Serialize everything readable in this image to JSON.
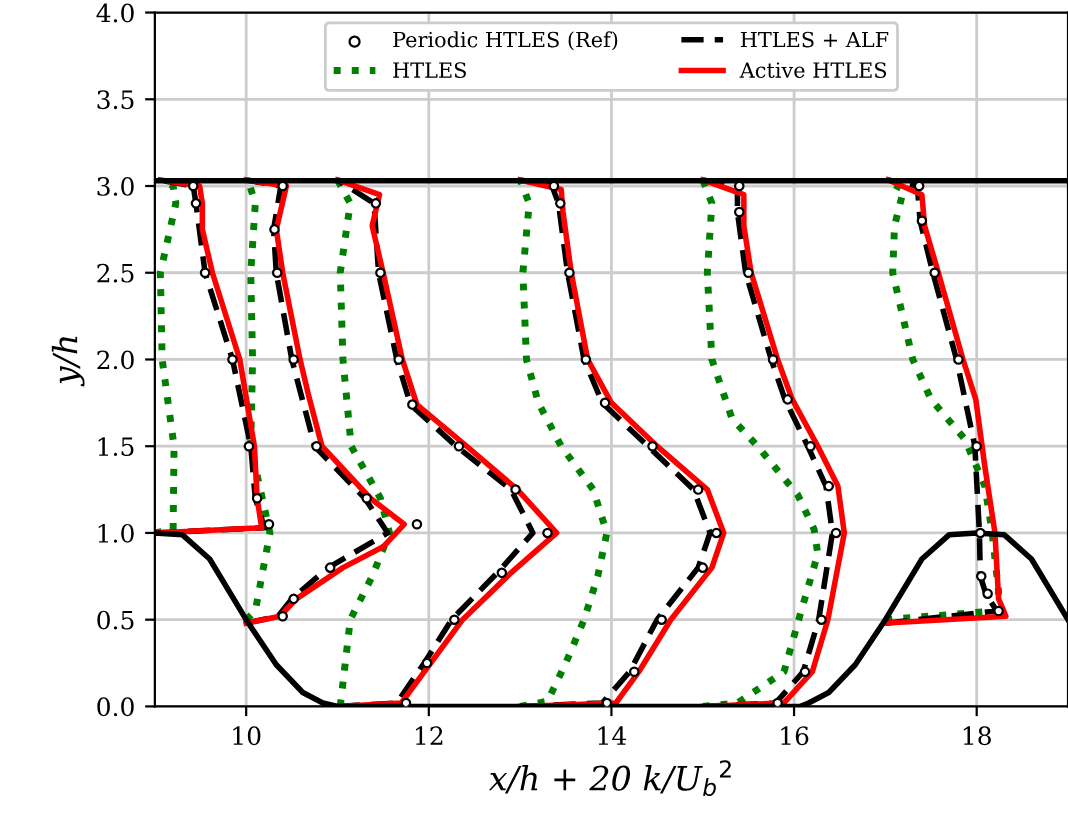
{
  "chart_data": {
    "type": "line",
    "xlabel": "x/h + 20 k/U$_{b}$$^{2}$",
    "ylabel": "y/h",
    "xlim": [
      9,
      19
    ],
    "ylim": [
      0,
      4
    ],
    "xticks": [
      10,
      12,
      14,
      16,
      18
    ],
    "yticks": [
      {
        "value": 0,
        "label": "0.0"
      },
      {
        "value": 0.5,
        "label": "0.5"
      },
      {
        "value": 1,
        "label": "1.0"
      },
      {
        "value": 1.5,
        "label": "1.5"
      },
      {
        "value": 2,
        "label": "2.0"
      },
      {
        "value": 2.5,
        "label": "2.5"
      },
      {
        "value": 3,
        "label": "3.0"
      },
      {
        "value": 3.5,
        "label": "3.5"
      },
      {
        "value": 4,
        "label": "4.0"
      }
    ],
    "grid": true,
    "legend": "top",
    "series": [
      {
        "name": "Periodic HTLES (Ref)",
        "type": "scatter",
        "marker": "circle",
        "color": "#000000",
        "x": [
          10.25,
          10.12,
          10.03,
          9.85,
          9.55,
          9.45,
          9.42,
          null,
          10.4,
          10.52,
          10.92,
          11.87,
          11.32,
          10.77,
          10.52,
          10.34,
          10.31,
          10.4,
          null,
          11.75,
          11.98,
          12.28,
          12.8,
          13.3,
          12.95,
          12.33,
          11.82,
          11.67,
          11.47,
          11.42,
          null,
          13.95,
          14.25,
          14.55,
          15.0,
          15.15,
          14.95,
          14.45,
          13.93,
          13.72,
          13.54,
          13.44,
          13.37,
          null,
          15.82,
          16.12,
          16.3,
          16.46,
          16.38,
          16.18,
          15.93,
          15.77,
          15.5,
          15.4,
          15.4,
          null,
          18.24,
          18.12,
          18.05,
          18.04,
          18.0,
          17.8,
          17.54,
          17.4,
          17.37
        ],
        "values": [
          1.05,
          1.2,
          1.5,
          2.0,
          2.5,
          2.9,
          3.0,
          null,
          0.52,
          0.62,
          0.8,
          1.05,
          1.2,
          1.5,
          2.0,
          2.5,
          2.75,
          3.0,
          null,
          0.02,
          0.25,
          0.5,
          0.77,
          1.0,
          1.25,
          1.5,
          1.74,
          2.0,
          2.5,
          2.9,
          null,
          0.02,
          0.2,
          0.5,
          0.8,
          1.0,
          1.25,
          1.5,
          1.75,
          2.0,
          2.5,
          2.9,
          3.0,
          null,
          0.02,
          0.2,
          0.5,
          1.0,
          1.27,
          1.5,
          1.77,
          2.0,
          2.5,
          2.85,
          3.0,
          null,
          0.55,
          0.65,
          0.75,
          1.0,
          1.5,
          2.0,
          2.5,
          2.8,
          3.0
        ]
      },
      {
        "name": "HTLES",
        "line_style": "dotted",
        "color": "#008000",
        "x": [
          9.0,
          9.2,
          9.21,
          9.08,
          9.06,
          9.23,
          9.2,
          9.05,
          null,
          10.0,
          10.1,
          10.26,
          10.05,
          10.07,
          10.05,
          10.1,
          10.02,
          null,
          11.03,
          11.14,
          11.38,
          11.57,
          11.47,
          11.15,
          11.06,
          11.03,
          11.14,
          11.0,
          null,
          13.0,
          13.3,
          13.5,
          13.7,
          13.85,
          13.95,
          13.8,
          13.45,
          13.2,
          13.07,
          13.03,
          13.1,
          13.0,
          null,
          15.0,
          15.38,
          15.89,
          16.04,
          16.26,
          16.22,
          16.04,
          15.6,
          15.32,
          15.1,
          15.05,
          15.1,
          15.0,
          null,
          17.0,
          18.2,
          18.24,
          18.17,
          18.09,
          17.87,
          17.5,
          17.3,
          17.08,
          17.1,
          17.2,
          17.0
        ],
        "values": [
          1.0,
          1.02,
          1.5,
          2.0,
          2.5,
          2.9,
          3.0,
          3.035,
          null,
          0.5,
          0.55,
          1.0,
          1.5,
          2.0,
          2.5,
          2.9,
          3.035,
          null,
          0.0,
          0.5,
          0.75,
          1.0,
          1.2,
          1.5,
          2.0,
          2.5,
          2.9,
          3.035,
          null,
          0.0,
          0.03,
          0.25,
          0.5,
          0.75,
          1.0,
          1.25,
          1.5,
          1.75,
          2.0,
          2.5,
          2.9,
          3.035,
          null,
          0.0,
          0.02,
          0.2,
          0.48,
          0.88,
          1.02,
          1.22,
          1.5,
          1.66,
          2.0,
          2.5,
          2.9,
          3.035,
          null,
          0.5,
          0.55,
          0.66,
          1.0,
          1.27,
          1.54,
          1.77,
          2.0,
          2.5,
          2.77,
          2.98,
          3.035
        ]
      },
      {
        "name": "HTLES + ALF",
        "line_style": "dashed",
        "color": "#000000",
        "x": [
          9.0,
          10.2,
          10.1,
          10.05,
          9.85,
          9.55,
          9.45,
          9.42,
          9.05,
          null,
          10.0,
          10.35,
          10.5,
          10.9,
          11.55,
          11.3,
          10.75,
          10.5,
          10.33,
          10.3,
          10.38,
          10.0,
          null,
          11.0,
          11.65,
          11.95,
          12.25,
          12.75,
          13.14,
          12.9,
          12.3,
          11.8,
          11.65,
          11.45,
          11.4,
          11.0,
          null,
          13.0,
          13.9,
          14.2,
          14.5,
          14.95,
          15.08,
          14.9,
          14.4,
          13.9,
          13.7,
          13.52,
          13.42,
          13.35,
          13.0,
          null,
          15.0,
          15.8,
          16.1,
          16.27,
          16.42,
          16.35,
          16.15,
          15.9,
          15.75,
          15.47,
          15.38,
          15.38,
          15.0,
          null,
          17.0,
          18.22,
          18.1,
          18.04,
          18.03,
          17.98,
          17.78,
          17.52,
          17.38,
          17.35,
          17.03
        ],
        "values": [
          1.0,
          1.03,
          1.2,
          1.5,
          2.0,
          2.5,
          2.9,
          3.0,
          3.035,
          null,
          0.48,
          0.52,
          0.62,
          0.8,
          1.0,
          1.2,
          1.5,
          2.0,
          2.5,
          2.75,
          3.0,
          3.035,
          null,
          0.0,
          0.02,
          0.25,
          0.5,
          0.77,
          1.0,
          1.25,
          1.5,
          1.74,
          2.0,
          2.5,
          2.9,
          3.035,
          null,
          0.0,
          0.02,
          0.2,
          0.5,
          0.8,
          1.0,
          1.25,
          1.5,
          1.75,
          2.0,
          2.5,
          2.9,
          3.0,
          3.035,
          null,
          0.0,
          0.02,
          0.2,
          0.5,
          1.0,
          1.27,
          1.5,
          1.77,
          2.0,
          2.5,
          2.85,
          3.0,
          3.035,
          null,
          0.48,
          0.55,
          0.65,
          0.75,
          1.0,
          1.5,
          2.0,
          2.5,
          2.8,
          3.0,
          3.035
        ]
      },
      {
        "name": "Active HTLES",
        "line_style": "solid",
        "color": "#ff0000",
        "x": [
          9.0,
          10.17,
          10.12,
          10.09,
          9.93,
          9.63,
          9.52,
          9.52,
          9.49,
          9.06,
          null,
          10.0,
          10.37,
          10.55,
          11.06,
          11.5,
          11.73,
          11.36,
          10.83,
          10.68,
          10.59,
          10.4,
          10.33,
          10.44,
          10.0,
          null,
          11.0,
          11.7,
          12.02,
          12.37,
          12.9,
          13.4,
          12.97,
          12.37,
          11.87,
          11.71,
          11.5,
          11.38,
          11.46,
          11.0,
          null,
          13.0,
          14.05,
          14.3,
          14.65,
          15.1,
          15.23,
          15.05,
          14.5,
          14.0,
          13.74,
          13.56,
          13.47,
          13.45,
          13.0,
          null,
          15.0,
          15.89,
          16.2,
          16.37,
          16.55,
          16.48,
          16.26,
          15.98,
          15.82,
          15.53,
          15.45,
          15.45,
          15.0,
          null,
          17.0,
          18.32,
          18.24,
          18.2,
          18.09,
          17.99,
          17.85,
          17.58,
          17.43,
          17.4,
          17.03
        ],
        "values": [
          1.0,
          1.03,
          1.2,
          1.5,
          2.0,
          2.5,
          2.75,
          2.9,
          3.0,
          3.035,
          null,
          0.48,
          0.52,
          0.62,
          0.8,
          0.92,
          1.05,
          1.2,
          1.5,
          1.8,
          2.0,
          2.5,
          2.75,
          3.0,
          3.035,
          null,
          0.0,
          0.02,
          0.25,
          0.5,
          0.77,
          1.0,
          1.25,
          1.52,
          1.74,
          2.0,
          2.5,
          2.77,
          2.95,
          3.035,
          null,
          0.0,
          0.02,
          0.2,
          0.5,
          0.8,
          1.0,
          1.25,
          1.5,
          1.75,
          2.0,
          2.5,
          2.85,
          2.98,
          3.035,
          null,
          0.0,
          0.02,
          0.2,
          0.5,
          1.0,
          1.27,
          1.5,
          1.77,
          2.0,
          2.5,
          2.77,
          2.95,
          3.035,
          null,
          0.48,
          0.52,
          0.62,
          1.0,
          1.38,
          1.77,
          2.0,
          2.5,
          2.77,
          2.95,
          3.035
        ]
      },
      {
        "line_style": "solid",
        "color": "#000000",
        "x": [
          9.0,
          9.3,
          9.6,
          10.0,
          10.33,
          10.62,
          10.84,
          11.0,
          16.07,
          16.16,
          16.38,
          16.67,
          17.0,
          17.4,
          17.7,
          18.0,
          18.3,
          18.6,
          19.0
        ],
        "values": [
          1.0,
          0.99,
          0.85,
          0.5,
          0.24,
          0.08,
          0.02,
          0.0,
          0.0,
          0.02,
          0.08,
          0.24,
          0.5,
          0.85,
          0.99,
          1.0,
          0.99,
          0.85,
          0.5
        ]
      },
      {
        "line_style": "solid",
        "color": "#000000",
        "x": [
          9.0,
          19.0
        ],
        "values": [
          3.03,
          3.03
        ]
      }
    ]
  }
}
